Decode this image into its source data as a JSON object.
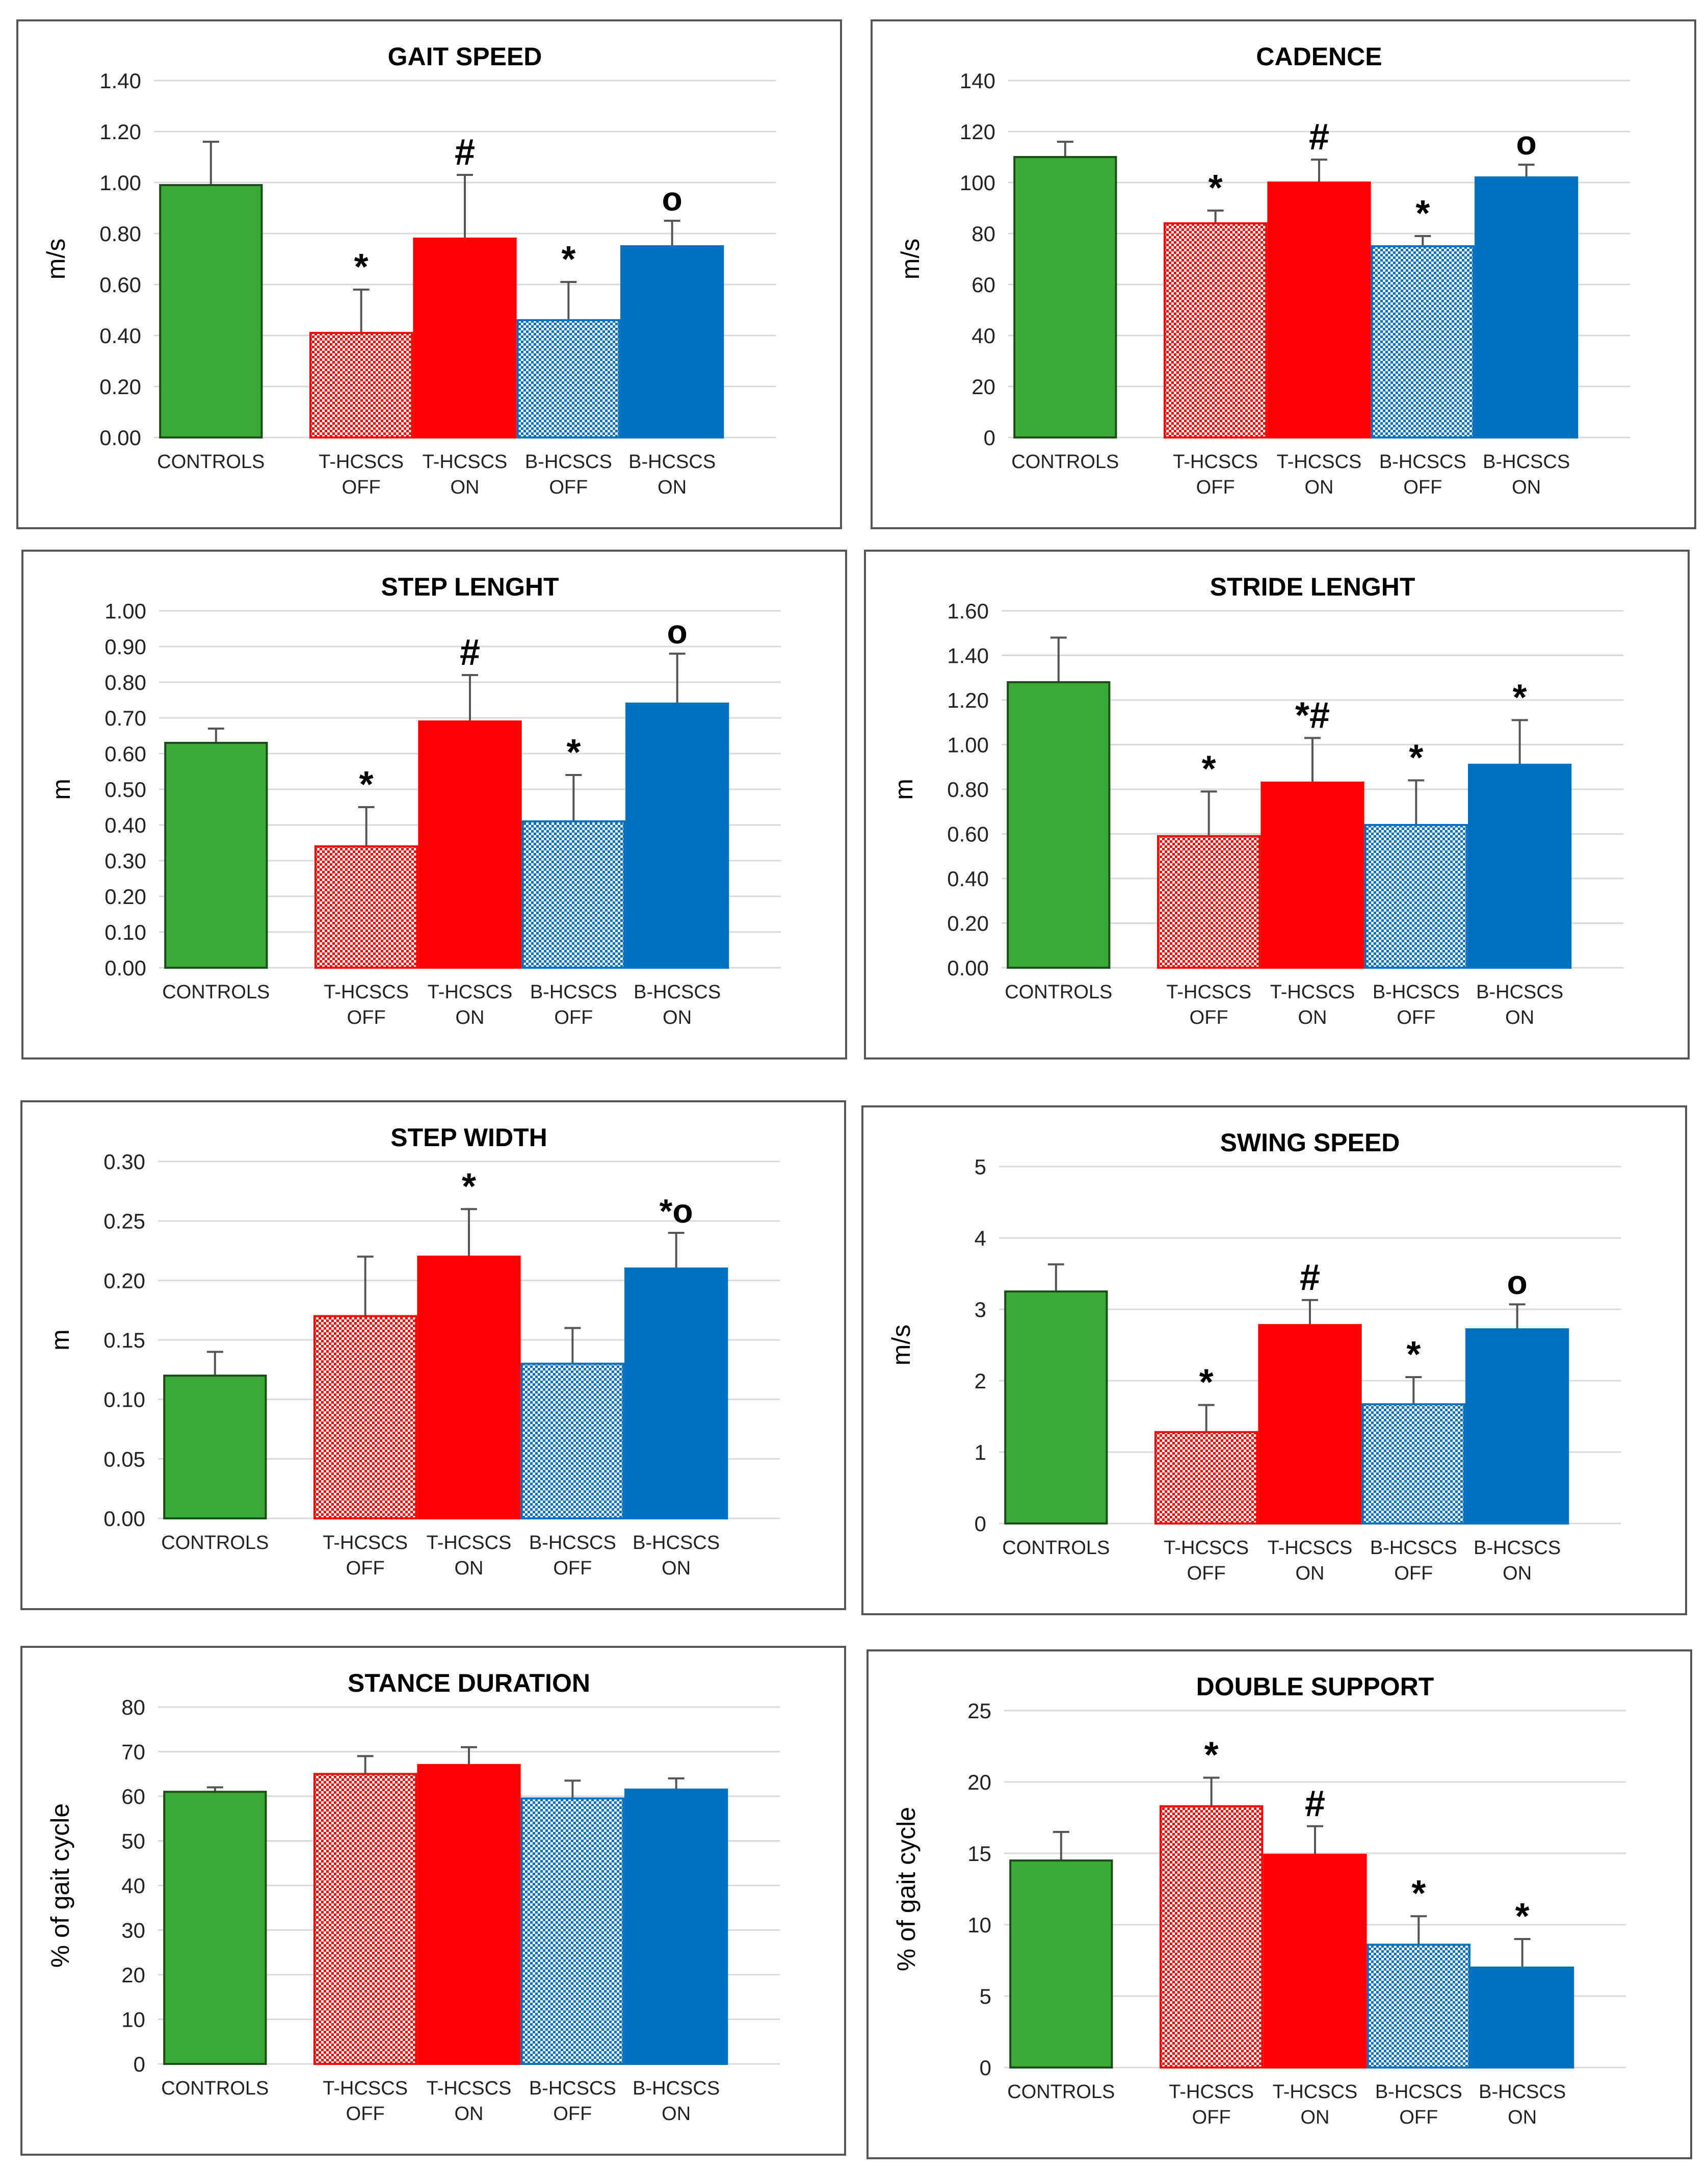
{
  "colors": {
    "controls": "#3aa935",
    "t_hcscs": "#ff0000",
    "b_hcscs": "#0070c0",
    "frame": "#555555",
    "grid": "#d9d9d9",
    "text": "#000000"
  },
  "groups": {
    "controls": [
      "CONTROLS"
    ],
    "t_off": [
      "T-HCSCS",
      "OFF"
    ],
    "t_on": [
      "T-HCSCS",
      "ON"
    ],
    "b_off": [
      "B-HCSCS",
      "OFF"
    ],
    "b_on": [
      "B-HCSCS",
      "ON"
    ]
  },
  "chart_data": [
    {
      "type": "bar",
      "title": "GAIT SPEED",
      "ylabel": "m/s",
      "ylim": [
        0,
        1.4
      ],
      "yticks": [
        "0.00",
        "0.20",
        "0.40",
        "0.60",
        "0.80",
        "1.00",
        "1.20",
        "1.40"
      ],
      "categories": [
        "CONTROLS",
        "T-HCSCS OFF",
        "T-HCSCS ON",
        "B-HCSCS OFF",
        "B-HCSCS ON"
      ],
      "values": [
        0.99,
        0.41,
        0.78,
        0.46,
        0.75
      ],
      "errors": [
        0.17,
        0.17,
        0.25,
        0.15,
        0.1
      ],
      "markers": [
        "",
        "*",
        "#",
        "*",
        "o"
      ],
      "grid": true
    },
    {
      "type": "bar",
      "title": "CADENCE",
      "ylabel": "m/s",
      "ylim": [
        0,
        140
      ],
      "yticks": [
        "0",
        "20",
        "40",
        "60",
        "80",
        "100",
        "120",
        "140"
      ],
      "categories": [
        "CONTROLS",
        "T-HCSCS OFF",
        "T-HCSCS ON",
        "B-HCSCS OFF",
        "B-HCSCS ON"
      ],
      "values": [
        110,
        84,
        100,
        75,
        102
      ],
      "errors": [
        6,
        5,
        9,
        4,
        5
      ],
      "markers": [
        "",
        "*",
        "#",
        "*",
        "o"
      ],
      "grid": true
    },
    {
      "type": "bar",
      "title": "STEP LENGHT",
      "ylabel": "m",
      "ylim": [
        0,
        1.0
      ],
      "yticks": [
        "0.00",
        "0.10",
        "0.20",
        "0.30",
        "0.40",
        "0.50",
        "0.60",
        "0.70",
        "0.80",
        "0.90",
        "1.00"
      ],
      "categories": [
        "CONTROLS",
        "T-HCSCS OFF",
        "T-HCSCS ON",
        "B-HCSCS OFF",
        "B-HCSCS ON"
      ],
      "values": [
        0.63,
        0.34,
        0.69,
        0.41,
        0.74
      ],
      "errors": [
        0.04,
        0.11,
        0.13,
        0.13,
        0.14
      ],
      "markers": [
        "",
        "*",
        "#",
        "*",
        "o"
      ],
      "grid": true
    },
    {
      "type": "bar",
      "title": "STRIDE LENGHT",
      "ylabel": "m",
      "ylim": [
        0,
        1.6
      ],
      "yticks": [
        "0.00",
        "0.20",
        "0.40",
        "0.60",
        "0.80",
        "1.00",
        "1.20",
        "1.40",
        "1.60"
      ],
      "categories": [
        "CONTROLS",
        "T-HCSCS OFF",
        "T-HCSCS ON",
        "B-HCSCS OFF",
        "B-HCSCS ON"
      ],
      "values": [
        1.28,
        0.59,
        0.83,
        0.64,
        0.91
      ],
      "errors": [
        0.2,
        0.2,
        0.2,
        0.2,
        0.2
      ],
      "markers": [
        "",
        "*",
        "*#",
        "*",
        "*"
      ],
      "grid": true
    },
    {
      "type": "bar",
      "title": "STEP WIDTH",
      "ylabel": "m",
      "ylim": [
        0,
        0.3
      ],
      "yticks": [
        "0.00",
        "0.05",
        "0.10",
        "0.15",
        "0.20",
        "0.25",
        "0.30"
      ],
      "categories": [
        "CONTROLS",
        "T-HCSCS OFF",
        "T-HCSCS ON",
        "B-HCSCS OFF",
        "B-HCSCS ON"
      ],
      "values": [
        0.12,
        0.17,
        0.22,
        0.13,
        0.21
      ],
      "errors": [
        0.02,
        0.05,
        0.04,
        0.03,
        0.03
      ],
      "markers": [
        "",
        "",
        "*",
        "",
        "*o"
      ],
      "grid": true
    },
    {
      "type": "bar",
      "title": "SWING SPEED",
      "ylabel": "m/s",
      "ylim": [
        0,
        5
      ],
      "yticks": [
        "0",
        "1",
        "2",
        "3",
        "4",
        "5"
      ],
      "categories": [
        "CONTROLS",
        "T-HCSCS OFF",
        "T-HCSCS ON",
        "B-HCSCS OFF",
        "B-HCSCS ON"
      ],
      "values": [
        3.25,
        1.28,
        2.78,
        1.67,
        2.72
      ],
      "errors": [
        0.38,
        0.38,
        0.35,
        0.38,
        0.35
      ],
      "markers": [
        "",
        "*",
        "#",
        "*",
        "o"
      ],
      "grid": true
    },
    {
      "type": "bar",
      "title": "STANCE DURATION",
      "ylabel": "% of gait cycle",
      "ylim": [
        0,
        80
      ],
      "yticks": [
        "0",
        "10",
        "20",
        "30",
        "40",
        "50",
        "60",
        "70",
        "80"
      ],
      "categories": [
        "CONTROLS",
        "T-HCSCS OFF",
        "T-HCSCS ON",
        "B-HCSCS OFF",
        "B-HCSCS ON"
      ],
      "values": [
        61,
        65,
        67,
        59.5,
        61.5
      ],
      "errors": [
        1,
        4,
        4,
        4,
        2.5
      ],
      "markers": [
        "",
        "",
        "",
        "",
        ""
      ],
      "grid": true
    },
    {
      "type": "bar",
      "title": "DOUBLE SUPPORT",
      "ylabel": "% of gait cycle",
      "ylim": [
        0,
        25
      ],
      "yticks": [
        "0",
        "5",
        "10",
        "15",
        "20",
        "25"
      ],
      "categories": [
        "CONTROLS",
        "T-HCSCS OFF",
        "T-HCSCS ON",
        "B-HCSCS OFF",
        "B-HCSCS ON"
      ],
      "values": [
        14.5,
        18.3,
        14.9,
        8.6,
        7.0
      ],
      "errors": [
        2,
        2,
        2,
        2,
        2
      ],
      "markers": [
        "",
        "*",
        "#",
        "*",
        "*"
      ],
      "grid": true
    }
  ]
}
